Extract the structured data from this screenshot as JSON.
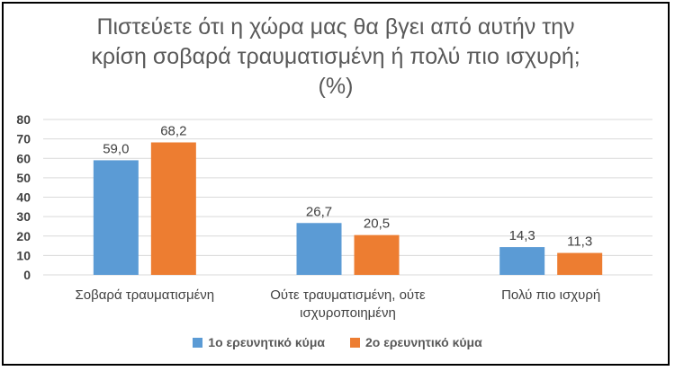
{
  "chart_data": {
    "type": "bar",
    "title_lines": [
      "Πιστεύετε ότι η χώρα μας θα βγει από αυτήν την",
      "κρίση σοβαρά τραυματισμένη ή πολύ πιο ισχυρή;",
      "(%)"
    ],
    "categories": [
      [
        "Σοβαρά τραυματισμένη"
      ],
      [
        "Ούτε τραυματισμένη, ούτε",
        "ισχυροποιημένη"
      ],
      [
        "Πολύ πιο ισχυρή"
      ]
    ],
    "series": [
      {
        "name": "1ο ερευνητικό κύμα",
        "color": "#5B9BD5",
        "values": [
          59.0,
          26.7,
          14.3
        ],
        "labels": [
          "59,0",
          "26,7",
          "14,3"
        ]
      },
      {
        "name": "2ο ερευνητικό κύμα",
        "color": "#ED7D31",
        "values": [
          68.2,
          20.5,
          11.3
        ],
        "labels": [
          "68,2",
          "20,5",
          "11,3"
        ]
      }
    ],
    "ylim": [
      0,
      80
    ],
    "yticks": [
      "0",
      "10",
      "20",
      "30",
      "40",
      "50",
      "60",
      "70",
      "80"
    ],
    "grid": true,
    "legend_position": "bottom"
  }
}
